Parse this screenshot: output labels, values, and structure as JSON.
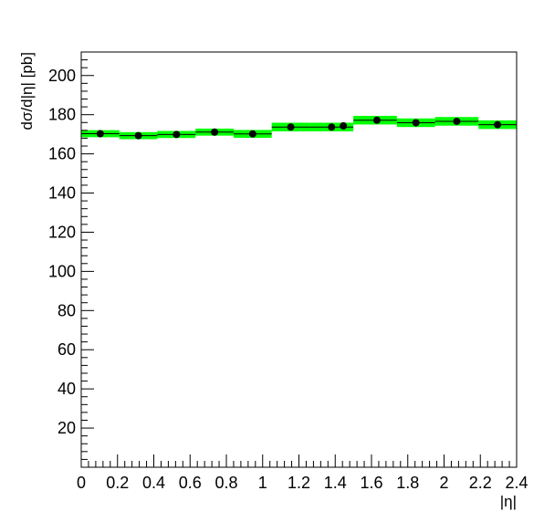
{
  "chart_data": {
    "type": "scatter",
    "title": "",
    "xlabel": "|η|",
    "ylabel": "dσ/d|η| [pb]",
    "xlim": [
      0,
      2.4
    ],
    "ylim": [
      0,
      212
    ],
    "x_ticks": [
      "0",
      "0.2",
      "0.4",
      "0.6",
      "0.8",
      "1",
      "1.2",
      "1.4",
      "1.6",
      "1.8",
      "2",
      "2.2",
      "2.4"
    ],
    "y_ticks": [
      "20",
      "40",
      "60",
      "80",
      "100",
      "120",
      "140",
      "160",
      "180",
      "200"
    ],
    "band_color": "#00ff00",
    "marker_color": "#000000",
    "grid": false,
    "legend": "none",
    "series": [
      {
        "bins": [
          {
            "xlo": 0.0,
            "xhi": 0.21,
            "x": 0.105,
            "y": 170.3,
            "unc": 1.8
          },
          {
            "xlo": 0.21,
            "xhi": 0.42,
            "x": 0.315,
            "y": 169.3,
            "unc": 1.8
          },
          {
            "xlo": 0.42,
            "xhi": 0.63,
            "x": 0.525,
            "y": 169.9,
            "unc": 1.8
          },
          {
            "xlo": 0.63,
            "xhi": 0.84,
            "x": 0.735,
            "y": 171.1,
            "unc": 1.8
          },
          {
            "xlo": 0.84,
            "xhi": 1.05,
            "x": 0.945,
            "y": 170.2,
            "unc": 2.0
          },
          {
            "xlo": 1.05,
            "xhi": 1.26,
            "x": 1.155,
            "y": 173.7,
            "unc": 2.2
          },
          {
            "xlo": 1.26,
            "xhi": 1.5,
            "x": 1.38,
            "y": 173.7,
            "unc": 2.2
          },
          {
            "xlo": 1.5,
            "xhi": 1.5,
            "x": 1.445,
            "y": 174.3,
            "unc": 0
          },
          {
            "xlo": 1.5,
            "xhi": 1.74,
            "x": 1.63,
            "y": 177.2,
            "unc": 2.2
          },
          {
            "xlo": 1.74,
            "xhi": 1.95,
            "x": 1.845,
            "y": 175.9,
            "unc": 2.2
          },
          {
            "xlo": 1.95,
            "xhi": 2.19,
            "x": 2.07,
            "y": 176.6,
            "unc": 2.2
          },
          {
            "xlo": 2.19,
            "xhi": 2.4,
            "x": 2.295,
            "y": 174.9,
            "unc": 2.2
          }
        ]
      }
    ]
  }
}
